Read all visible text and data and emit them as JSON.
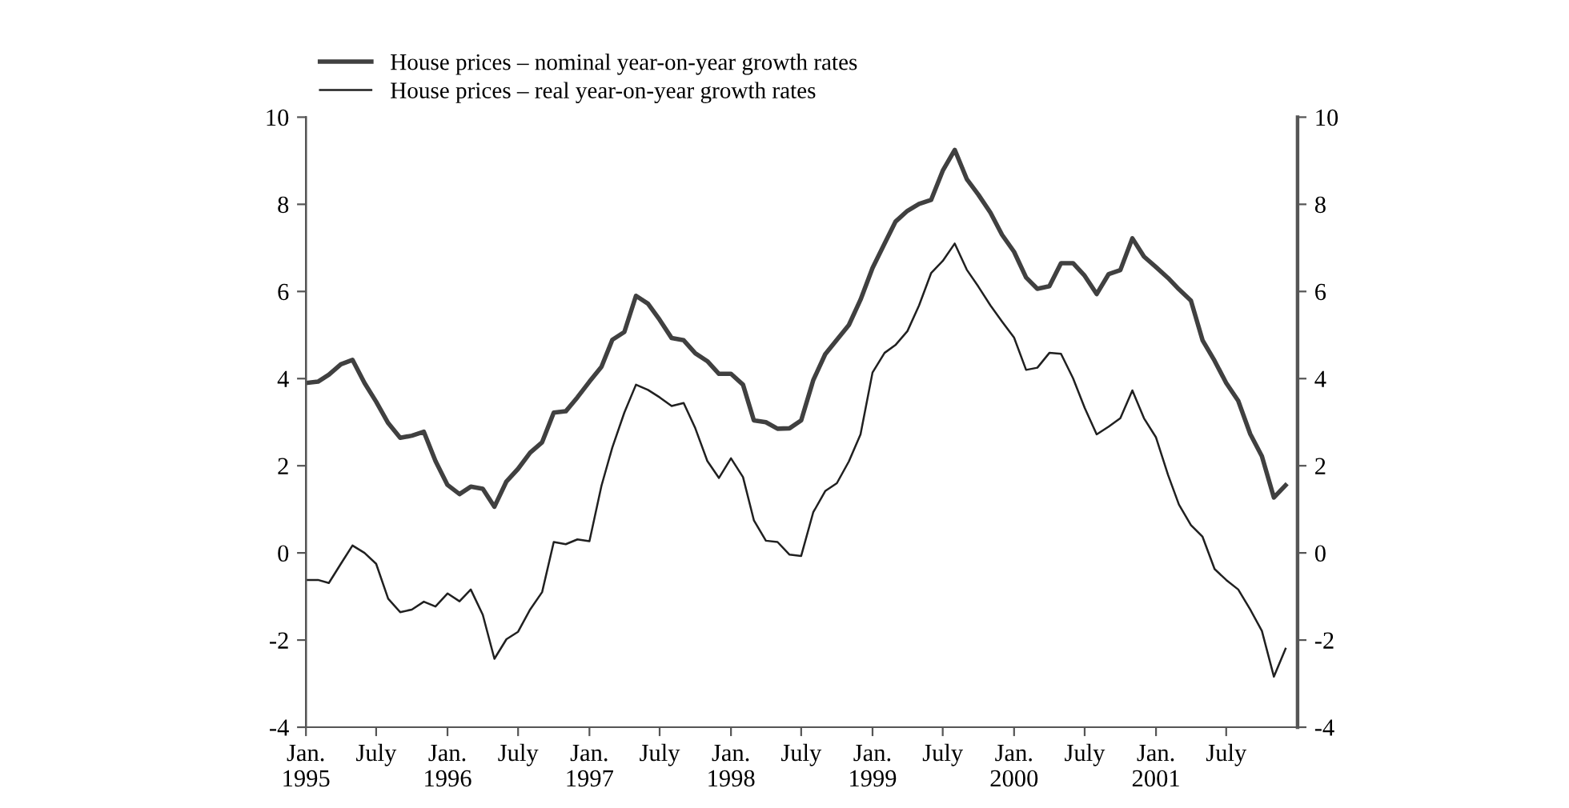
{
  "chart_data": {
    "type": "line",
    "legend": "top left",
    "grid": false,
    "line_style": "solid",
    "marker": "none",
    "x": [
      "1995-01",
      "1995-02",
      "1995-03",
      "1995-04",
      "1995-05",
      "1995-06",
      "1995-07",
      "1995-08",
      "1995-09",
      "1995-10",
      "1995-11",
      "1995-12",
      "1996-01",
      "1996-02",
      "1996-03",
      "1996-04",
      "1996-05",
      "1996-06",
      "1996-07",
      "1996-08",
      "1996-09",
      "1996-10",
      "1996-11",
      "1996-12",
      "1997-01",
      "1997-02",
      "1997-03",
      "1997-04",
      "1997-05",
      "1997-06",
      "1997-07",
      "1997-08",
      "1997-09",
      "1997-10",
      "1997-11",
      "1997-12",
      "1998-01",
      "1998-02",
      "1998-03",
      "1998-04",
      "1998-05",
      "1998-06",
      "1998-07",
      "1998-08",
      "1998-09",
      "1998-10",
      "1998-11",
      "1998-12",
      "1999-01",
      "1999-02",
      "1999-03",
      "1999-04",
      "1999-05",
      "1999-06",
      "1999-07",
      "1999-08",
      "1999-09",
      "1999-10",
      "1999-11",
      "1999-12",
      "2000-01",
      "2000-02",
      "2000-03",
      "2000-04",
      "2000-05",
      "2000-06",
      "2000-07",
      "2000-08",
      "2000-09",
      "2000-10",
      "2000-11",
      "2000-12",
      "2001-01",
      "2001-02",
      "2001-03",
      "2001-04",
      "2001-05",
      "2001-06",
      "2001-07",
      "2001-08",
      "2001-09",
      "2001-10",
      "2001-11",
      "2001-12"
    ],
    "series": [
      {
        "name": "House prices – nominal year-on-year growth rates",
        "color": "#404040",
        "values": [
          3.9,
          3.93,
          4.09,
          4.33,
          4.43,
          3.9,
          3.47,
          2.98,
          2.64,
          2.69,
          2.78,
          2.11,
          1.56,
          1.35,
          1.52,
          1.47,
          1.06,
          1.64,
          1.93,
          2.3,
          2.54,
          3.22,
          3.25,
          3.57,
          3.93,
          4.27,
          4.89,
          5.07,
          5.9,
          5.72,
          5.35,
          4.93,
          4.88,
          4.58,
          4.4,
          4.11,
          4.11,
          3.86,
          3.04,
          3.0,
          2.85,
          2.86,
          3.04,
          3.96,
          4.56,
          4.89,
          5.23,
          5.81,
          6.54,
          7.1,
          7.6,
          7.85,
          8.01,
          8.1,
          8.77,
          9.25,
          8.58,
          8.22,
          7.81,
          7.3,
          6.91,
          6.32,
          6.06,
          6.12,
          6.65,
          6.65,
          6.36,
          5.94,
          6.4,
          6.49,
          7.22,
          6.8,
          6.56,
          6.31,
          6.05,
          5.79,
          4.88,
          4.41,
          3.9,
          3.49,
          2.73,
          2.22,
          1.27,
          1.55
        ]
      },
      {
        "name": "House prices – real year-on-year growth rates",
        "color": "#202020",
        "values": [
          -0.62,
          -0.62,
          -0.69,
          -0.25,
          0.17,
          0.0,
          -0.25,
          -1.05,
          -1.36,
          -1.3,
          -1.12,
          -1.23,
          -0.93,
          -1.11,
          -0.84,
          -1.42,
          -2.43,
          -1.98,
          -1.81,
          -1.3,
          -0.9,
          0.25,
          0.2,
          0.31,
          0.27,
          1.54,
          2.42,
          3.22,
          3.86,
          3.74,
          3.57,
          3.37,
          3.44,
          2.86,
          2.11,
          1.72,
          2.17,
          1.74,
          0.75,
          0.28,
          0.25,
          -0.04,
          -0.07,
          0.93,
          1.42,
          1.6,
          2.1,
          2.72,
          4.14,
          4.59,
          4.77,
          5.09,
          5.68,
          6.42,
          6.7,
          7.1,
          6.5,
          6.11,
          5.68,
          5.31,
          4.94,
          4.2,
          4.25,
          4.59,
          4.57,
          4.01,
          3.33,
          2.72,
          2.9,
          3.09,
          3.73,
          3.09,
          2.65,
          1.79,
          1.11,
          0.64,
          0.37,
          -0.37,
          -0.62,
          -0.84,
          -1.3,
          -1.79,
          -2.84,
          -2.2
        ]
      }
    ],
    "xlim": [
      "1995-01",
      "2002-01"
    ],
    "xticks": [
      {
        "value": "1995-01",
        "label": "Jan.\n1995"
      },
      {
        "value": "1995-07",
        "label": "July"
      },
      {
        "value": "1996-01",
        "label": "Jan.\n1996"
      },
      {
        "value": "1996-07",
        "label": "July"
      },
      {
        "value": "1997-01",
        "label": "Jan.\n1997"
      },
      {
        "value": "1997-07",
        "label": "July"
      },
      {
        "value": "1998-01",
        "label": "Jan.\n1998"
      },
      {
        "value": "1998-07",
        "label": "July"
      },
      {
        "value": "1999-01",
        "label": "Jan.\n1999"
      },
      {
        "value": "1999-07",
        "label": "July"
      },
      {
        "value": "2000-01",
        "label": "Jan.\n2000"
      },
      {
        "value": "2000-07",
        "label": "July"
      },
      {
        "value": "2001-01",
        "label": "Jan.\n2001"
      },
      {
        "value": "2001-07",
        "label": "July"
      }
    ],
    "ylim": [
      -4,
      10
    ],
    "yticks": [
      -4,
      -2,
      0,
      2,
      4,
      6,
      8,
      10
    ],
    "y2lim": [
      -4,
      10
    ],
    "y2ticks": [
      -4,
      -2,
      0,
      2,
      4,
      6,
      8,
      10
    ]
  }
}
